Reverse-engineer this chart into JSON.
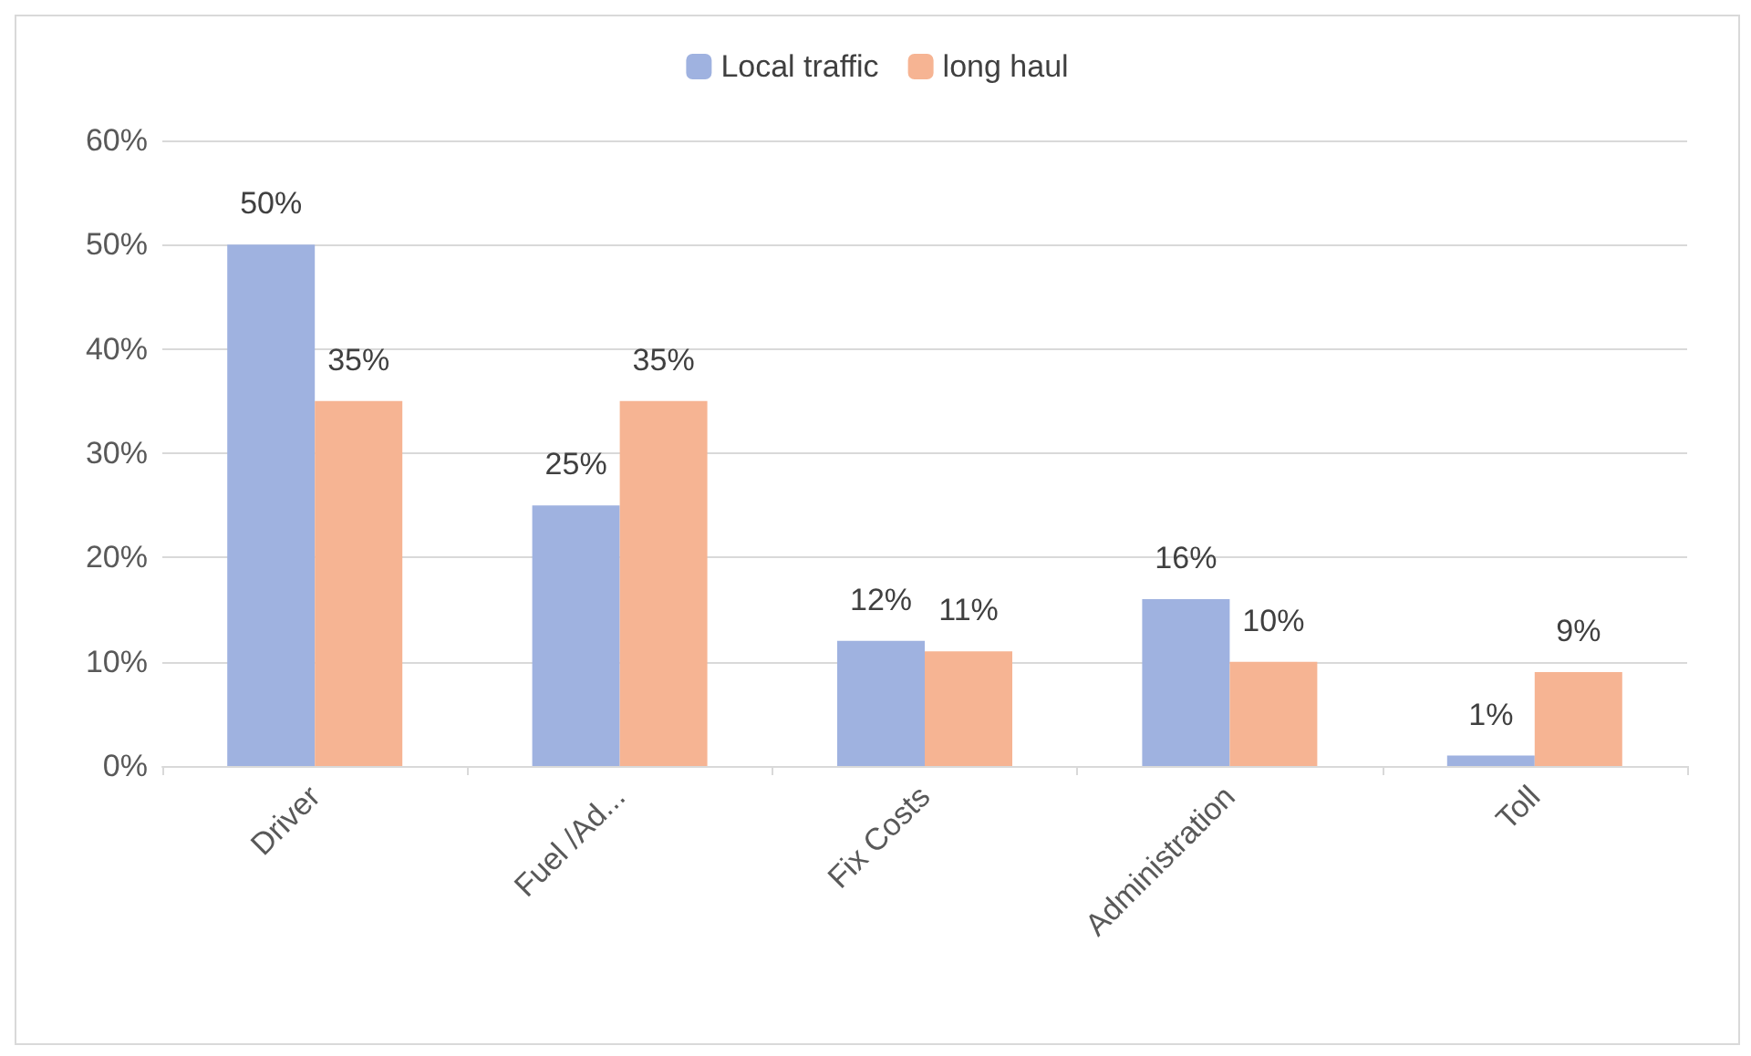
{
  "chart_data": {
    "type": "bar",
    "categories": [
      "Driver",
      "Fuel /Ad...",
      "Fix Costs",
      "Administration",
      "Toll"
    ],
    "series": [
      {
        "name": "Local traffic",
        "color": "#9fb2e0",
        "values": [
          50,
          25,
          12,
          16,
          1
        ],
        "value_labels": [
          "50%",
          "25%",
          "12%",
          "16%",
          "1%"
        ]
      },
      {
        "name": "long haul",
        "color": "#f6b493",
        "values": [
          35,
          35,
          11,
          10,
          9
        ],
        "value_labels": [
          "35%",
          "35%",
          "11%",
          "10%",
          "9%"
        ]
      }
    ],
    "ylim": [
      0,
      60
    ],
    "yticks": [
      {
        "value": 0,
        "label": "0%"
      },
      {
        "value": 10,
        "label": "10%"
      },
      {
        "value": 20,
        "label": "20%"
      },
      {
        "value": 30,
        "label": "30%"
      },
      {
        "value": 40,
        "label": "40%"
      },
      {
        "value": 50,
        "label": "50%"
      },
      {
        "value": 60,
        "label": "60%"
      }
    ],
    "grid": "y",
    "legend": "top"
  }
}
